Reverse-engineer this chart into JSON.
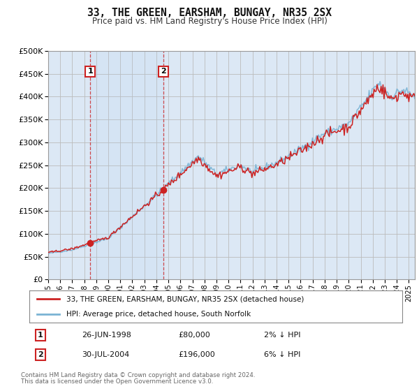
{
  "title": "33, THE GREEN, EARSHAM, BUNGAY, NR35 2SX",
  "subtitle": "Price paid vs. HM Land Registry's House Price Index (HPI)",
  "legend_line1": "33, THE GREEN, EARSHAM, BUNGAY, NR35 2SX (detached house)",
  "legend_line2": "HPI: Average price, detached house, South Norfolk",
  "sale1_date": "26-JUN-1998",
  "sale1_price": "£80,000",
  "sale1_hpi": "2% ↓ HPI",
  "sale2_date": "30-JUL-2004",
  "sale2_price": "£196,000",
  "sale2_hpi": "6% ↓ HPI",
  "footer": "Contains HM Land Registry data © Crown copyright and database right 2024.\nThis data is licensed under the Open Government Licence v3.0.",
  "hpi_color": "#7ab3d4",
  "price_color": "#cc2222",
  "background_color": "#ffffff",
  "plot_bg_color": "#dce8f5",
  "grid_color": "#bbbbbb",
  "ylim_max": 500000,
  "sale1_year": 1998.49,
  "sale1_value": 80000,
  "sale2_year": 2004.58,
  "sale2_value": 196000
}
